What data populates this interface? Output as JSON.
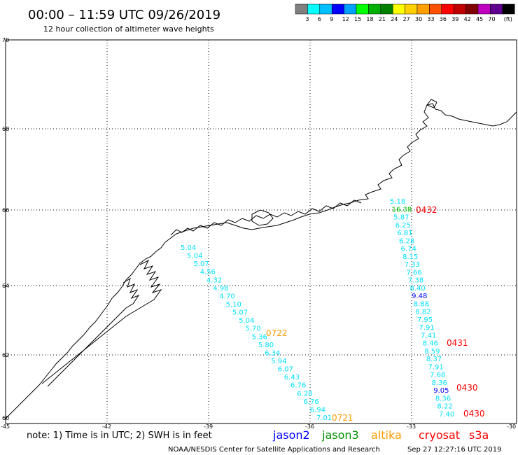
{
  "header": {
    "title": "00:00 – 11:59 UTC 09/26/2019",
    "subtitle": "12 hour collection of altimeter wave heights"
  },
  "legend": {
    "unit": "(ft)",
    "colors": [
      "#808080",
      "#00ffff",
      "#00c0ff",
      "#0000ff",
      "#00a0ff",
      "#00ff00",
      "#00b000",
      "#008000",
      "#ffff00",
      "#ffd000",
      "#ffa000",
      "#ff5000",
      "#ff0000",
      "#c00000",
      "#800000",
      "#c000c0",
      "#600090",
      "#000000"
    ],
    "labels": [
      "3",
      "6",
      "9",
      "12",
      "15",
      "18",
      "21",
      "24",
      "27",
      "30",
      "33",
      "36",
      "39",
      "42",
      "45",
      "70"
    ]
  },
  "axes": {
    "lat_labels": [
      "70",
      "68",
      "66",
      "64",
      "62",
      "60"
    ],
    "lon_labels": [
      "-45",
      "-42",
      "-39",
      "-36",
      "-33",
      "-30"
    ]
  },
  "tracks": {
    "west": {
      "color": "#00e0ff",
      "values": [
        "5.04",
        "5.04",
        "5.07",
        "4.56",
        "4.32",
        "4.98",
        "4.70",
        "5.10",
        "5.07",
        "5.04",
        "5.70",
        "5.36",
        "5.80",
        "6.34",
        "5.94",
        "6.07",
        "6.43",
        "6.76",
        "6.28",
        "6.76",
        "6.94",
        "7.01"
      ],
      "annotations": [
        {
          "text": "0722",
          "color": "#ff9900"
        },
        {
          "text": "0721",
          "color": "#ff9900"
        }
      ]
    },
    "east": {
      "color": "#00e0ff",
      "values": [
        "5.18",
        "16.38",
        "5.87",
        "6.25",
        "6.81",
        "6.28",
        "6.74",
        "8.15",
        "7.33",
        "7.66",
        "7.38",
        "8.40",
        "9.48",
        "8.88",
        "8.82",
        "7.95",
        "7.91",
        "7.41",
        "8.46",
        "8.59",
        "8.37",
        "7.91",
        "7.68",
        "8.36",
        "9.05",
        "8.36",
        "8.22",
        "7.40"
      ],
      "annotations": [
        {
          "text": "0432",
          "color": "#ff0000"
        },
        {
          "text": "0431",
          "color": "#ff0000"
        },
        {
          "text": "0430",
          "color": "#ff0000"
        },
        {
          "text": "0430",
          "color": "#ff0000"
        }
      ]
    }
  },
  "footer": {
    "note": "note:  1) Time is in UTC;  2) SWH is in feet",
    "sats": [
      {
        "name": "jason2",
        "color": "#0000ff"
      },
      {
        "name": "jason3",
        "color": "#009000"
      },
      {
        "name": "altika",
        "color": "#ff9900"
      },
      {
        "name": "cryosat",
        "color": "#ff0000"
      },
      {
        "name": "s3a",
        "color": "#ff0000"
      }
    ],
    "credit": "NOAA/NESDIS Center for Satellite Applications and Research",
    "timestamp": "Sep 27 12:27:16 UTC 2019"
  }
}
